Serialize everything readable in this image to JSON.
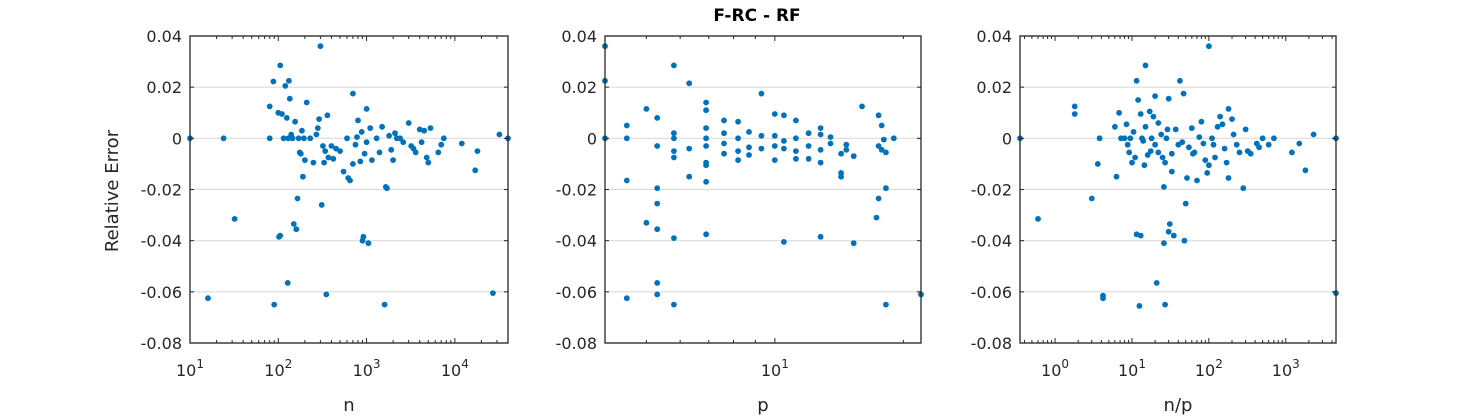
{
  "figure": {
    "title": "F-RC - RF",
    "ylabel": "Relative Error"
  },
  "chart_data": [
    {
      "type": "scatter",
      "xscale": "log",
      "xlim": [
        10,
        40000
      ],
      "ylim": [
        -0.08,
        0.04
      ],
      "xlabel": "n",
      "ylabel": "Relative Error",
      "grid": "horizontal",
      "x_tick_labels": [
        {
          "value": 10,
          "base": "10",
          "exp": "1"
        },
        {
          "value": 100,
          "base": "10",
          "exp": "2"
        },
        {
          "value": 1000,
          "base": "10",
          "exp": "3"
        },
        {
          "value": 10000,
          "base": "10",
          "exp": "4"
        }
      ],
      "y_ticks": [
        0.04,
        0.02,
        0,
        -0.02,
        -0.04,
        -0.06,
        -0.08
      ],
      "y_tick_labels": [
        "0.04",
        "0.02",
        "0",
        "-0.02",
        "-0.04",
        "-0.06",
        "-0.08"
      ],
      "color": "#0072BD",
      "points": [
        [
          10,
          0
        ],
        [
          16,
          -0.0625
        ],
        [
          24,
          0
        ],
        [
          32,
          -0.0315
        ],
        [
          80,
          0.0125
        ],
        [
          80,
          0
        ],
        [
          88,
          0.0222
        ],
        [
          90,
          -0.065
        ],
        [
          100,
          0.01
        ],
        [
          102,
          -0.0385
        ],
        [
          105,
          0.0285
        ],
        [
          105,
          -0.038
        ],
        [
          110,
          0.0095
        ],
        [
          115,
          0
        ],
        [
          120,
          0.0205
        ],
        [
          125,
          0.008
        ],
        [
          128,
          -0.0565
        ],
        [
          130,
          0
        ],
        [
          132,
          0.0225
        ],
        [
          135,
          0.0155
        ],
        [
          140,
          0.0015
        ],
        [
          145,
          0
        ],
        [
          150,
          -0.0335
        ],
        [
          155,
          0.0065
        ],
        [
          160,
          -0.0355
        ],
        [
          165,
          -0.0235
        ],
        [
          170,
          0
        ],
        [
          175,
          -0.0055
        ],
        [
          180,
          -0.006
        ],
        [
          185,
          0.003
        ],
        [
          190,
          -0.015
        ],
        [
          195,
          0
        ],
        [
          200,
          -0.0085
        ],
        [
          210,
          0.014
        ],
        [
          230,
          0
        ],
        [
          250,
          -0.0095
        ],
        [
          270,
          0.0015
        ],
        [
          280,
          0.004
        ],
        [
          290,
          0.0075
        ],
        [
          300,
          0.036
        ],
        [
          310,
          -0.026
        ],
        [
          320,
          -0.003
        ],
        [
          330,
          -0.0095
        ],
        [
          340,
          -0.005
        ],
        [
          350,
          -0.061
        ],
        [
          360,
          0.009
        ],
        [
          370,
          -0.0075
        ],
        [
          400,
          -0.003
        ],
        [
          420,
          -0.008
        ],
        [
          450,
          -0.004
        ],
        [
          500,
          -0.005
        ],
        [
          550,
          -0.013
        ],
        [
          600,
          0
        ],
        [
          620,
          -0.0155
        ],
        [
          650,
          -0.0165
        ],
        [
          700,
          0.0175
        ],
        [
          700,
          -0.01
        ],
        [
          750,
          -0.0025
        ],
        [
          780,
          0.0005
        ],
        [
          800,
          0.007
        ],
        [
          850,
          -0.009
        ],
        [
          880,
          0.0025
        ],
        [
          900,
          -0.04
        ],
        [
          920,
          -0.0385
        ],
        [
          950,
          -0.006
        ],
        [
          1000,
          0.0115
        ],
        [
          1000,
          -0.0015
        ],
        [
          1050,
          -0.041
        ],
        [
          1100,
          0.004
        ],
        [
          1150,
          -0.0085
        ],
        [
          1300,
          0
        ],
        [
          1400,
          -0.0055
        ],
        [
          1500,
          0.0045
        ],
        [
          1600,
          -0.065
        ],
        [
          1650,
          -0.019
        ],
        [
          1700,
          -0.0195
        ],
        [
          1800,
          0.001
        ],
        [
          1900,
          -0.0045
        ],
        [
          2000,
          -0.0085
        ],
        [
          2100,
          0.002
        ],
        [
          2200,
          0
        ],
        [
          2400,
          0
        ],
        [
          2600,
          -0.0015
        ],
        [
          3000,
          0.006
        ],
        [
          3200,
          -0.003
        ],
        [
          3400,
          -0.004
        ],
        [
          3600,
          -0.0055
        ],
        [
          4000,
          0.0035
        ],
        [
          4200,
          -0.0015
        ],
        [
          4500,
          0.003
        ],
        [
          4800,
          -0.0075
        ],
        [
          5000,
          -0.0095
        ],
        [
          5300,
          0.004
        ],
        [
          6500,
          -0.0055
        ],
        [
          7000,
          -0.0025
        ],
        [
          7500,
          0
        ],
        [
          12000,
          -0.002
        ],
        [
          17000,
          -0.0125
        ],
        [
          18000,
          -0.005
        ],
        [
          27000,
          -0.0605
        ],
        [
          32000,
          0.0015
        ],
        [
          40000,
          0
        ]
      ]
    },
    {
      "type": "scatter",
      "xscale": "log",
      "xlim": [
        4,
        22
      ],
      "ylim": [
        -0.08,
        0.04
      ],
      "xlabel": "p",
      "ylabel": "",
      "grid": "horizontal",
      "x_tick_labels": [
        {
          "value": 10,
          "base": "10",
          "exp": "1"
        }
      ],
      "y_ticks": [
        0.04,
        0.02,
        0,
        -0.02,
        -0.04,
        -0.06,
        -0.08
      ],
      "y_tick_labels": [
        "0.04",
        "0.02",
        "0",
        "-0.02",
        "-0.04",
        "-0.06",
        "-0.08"
      ],
      "color": "#0072BD",
      "points": [
        [
          4,
          0.036
        ],
        [
          4,
          0.0225
        ],
        [
          4,
          0
        ],
        [
          4.5,
          0.005
        ],
        [
          4.5,
          0
        ],
        [
          4.5,
          -0.0625
        ],
        [
          4.5,
          -0.0165
        ],
        [
          5,
          0.0115
        ],
        [
          5,
          -0.033
        ],
        [
          5.3,
          0.008
        ],
        [
          5.3,
          -0.003
        ],
        [
          5.3,
          -0.0195
        ],
        [
          5.3,
          -0.0255
        ],
        [
          5.3,
          -0.0565
        ],
        [
          5.3,
          -0.061
        ],
        [
          5.3,
          -0.0355
        ],
        [
          5.8,
          0.0285
        ],
        [
          5.8,
          0.002
        ],
        [
          5.8,
          0
        ],
        [
          5.8,
          -0.005
        ],
        [
          5.8,
          -0.0075
        ],
        [
          5.8,
          -0.039
        ],
        [
          5.8,
          -0.065
        ],
        [
          6.3,
          0.0215
        ],
        [
          6.3,
          -0.004
        ],
        [
          6.3,
          -0.015
        ],
        [
          6.9,
          0.014
        ],
        [
          6.9,
          0.011
        ],
        [
          6.9,
          0.004
        ],
        [
          6.9,
          0
        ],
        [
          6.9,
          -0.003
        ],
        [
          6.9,
          -0.0095
        ],
        [
          6.9,
          -0.0105
        ],
        [
          6.9,
          -0.017
        ],
        [
          6.9,
          -0.0375
        ],
        [
          7.6,
          0.007
        ],
        [
          7.6,
          0.002
        ],
        [
          7.6,
          -0.002
        ],
        [
          7.6,
          -0.006
        ],
        [
          8.2,
          0.0065
        ],
        [
          8.2,
          0
        ],
        [
          8.2,
          -0.005
        ],
        [
          8.2,
          -0.0085
        ],
        [
          8.7,
          0.0025
        ],
        [
          8.7,
          -0.0035
        ],
        [
          8.7,
          -0.0065
        ],
        [
          9.3,
          0.0175
        ],
        [
          9.3,
          0.001
        ],
        [
          9.3,
          -0.004
        ],
        [
          10,
          0.0095
        ],
        [
          10,
          0.001
        ],
        [
          10,
          -0.003
        ],
        [
          10,
          -0.0085
        ],
        [
          10.5,
          0.009
        ],
        [
          10.5,
          -0.001
        ],
        [
          10.5,
          -0.004
        ],
        [
          10.5,
          -0.0405
        ],
        [
          11.2,
          0.007
        ],
        [
          11.2,
          0
        ],
        [
          11.2,
          -0.005
        ],
        [
          11.2,
          -0.008
        ],
        [
          12,
          0.002
        ],
        [
          12,
          -0.003
        ],
        [
          12,
          -0.008
        ],
        [
          12.8,
          0.004
        ],
        [
          12.8,
          0.0015
        ],
        [
          12.8,
          -0.0045
        ],
        [
          12.8,
          -0.0095
        ],
        [
          12.8,
          -0.0385
        ],
        [
          13.5,
          0.0005
        ],
        [
          13.5,
          -0.002
        ],
        [
          14.3,
          -0.006
        ],
        [
          14.3,
          -0.0135
        ],
        [
          14.3,
          -0.015
        ],
        [
          14.7,
          -0.0025
        ],
        [
          14.7,
          -0.0045
        ],
        [
          15.3,
          -0.007
        ],
        [
          15.3,
          -0.041
        ],
        [
          16,
          0.0125
        ],
        [
          17.3,
          -0.031
        ],
        [
          17.5,
          0.009
        ],
        [
          17.5,
          -0.003
        ],
        [
          17.5,
          -0.0235
        ],
        [
          17.8,
          0.005
        ],
        [
          17.8,
          -0.0045
        ],
        [
          18,
          -0.0005
        ],
        [
          18.2,
          -0.065
        ],
        [
          18.2,
          -0.0195
        ],
        [
          18.2,
          -0.0055
        ],
        [
          19,
          0
        ],
        [
          22,
          -0.061
        ]
      ]
    },
    {
      "type": "scatter",
      "xscale": "log",
      "xlim": [
        0.35,
        4500
      ],
      "ylim": [
        -0.08,
        0.04
      ],
      "xlabel": "n/p",
      "ylabel": "",
      "grid": "horizontal",
      "x_tick_labels": [
        {
          "value": 1,
          "base": "10",
          "exp": "0"
        },
        {
          "value": 10,
          "base": "10",
          "exp": "1"
        },
        {
          "value": 100,
          "base": "10",
          "exp": "2"
        },
        {
          "value": 1000,
          "base": "10",
          "exp": "3"
        }
      ],
      "y_ticks": [
        0.04,
        0.02,
        0,
        -0.02,
        -0.04,
        -0.06,
        -0.08
      ],
      "y_tick_labels": [
        "0.04",
        "0.02",
        "0",
        "-0.02",
        "-0.04",
        "-0.06",
        "-0.08"
      ],
      "color": "#0072BD",
      "points": [
        [
          0.35,
          0
        ],
        [
          0.6,
          -0.0315
        ],
        [
          1.8,
          0.0125
        ],
        [
          1.8,
          0.0095
        ],
        [
          3,
          -0.0235
        ],
        [
          3.6,
          -0.01
        ],
        [
          3.8,
          0
        ],
        [
          4.2,
          -0.0615
        ],
        [
          4.2,
          -0.0625
        ],
        [
          6,
          0.0045
        ],
        [
          6.3,
          -0.015
        ],
        [
          6.8,
          0.01
        ],
        [
          7.2,
          0
        ],
        [
          8,
          0
        ],
        [
          8.5,
          0.0055
        ],
        [
          8.8,
          -0.0025
        ],
        [
          9.2,
          -0.0055
        ],
        [
          9.5,
          0
        ],
        [
          10,
          -0.0095
        ],
        [
          10.5,
          0.0025
        ],
        [
          11,
          -0.0075
        ],
        [
          11.5,
          -0.0375
        ],
        [
          11.5,
          0.0225
        ],
        [
          12,
          0.015
        ],
        [
          12.5,
          -0.0655
        ],
        [
          13,
          0.0095
        ],
        [
          13,
          -0.038
        ],
        [
          13.5,
          0
        ],
        [
          14,
          -0.001
        ],
        [
          14.5,
          -0.0105
        ],
        [
          15,
          0.0285
        ],
        [
          15,
          0.0045
        ],
        [
          16,
          -0.0065
        ],
        [
          17,
          0.0105
        ],
        [
          17.5,
          -0.005
        ],
        [
          18,
          0
        ],
        [
          19,
          0.0085
        ],
        [
          20,
          0.0165
        ],
        [
          20,
          -0.0025
        ],
        [
          21,
          -0.0565
        ],
        [
          22,
          0.006
        ],
        [
          22,
          -0.0055
        ],
        [
          24,
          0.0015
        ],
        [
          25,
          -0.0075
        ],
        [
          26,
          -0.041
        ],
        [
          26,
          -0.019
        ],
        [
          27,
          -0.0095
        ],
        [
          27,
          -0.065
        ],
        [
          28,
          0
        ],
        [
          29,
          0.0035
        ],
        [
          30,
          -0.0365
        ],
        [
          30,
          0.0155
        ],
        [
          31,
          -0.0335
        ],
        [
          33,
          -0.013
        ],
        [
          33,
          -0.006
        ],
        [
          35,
          -0.038
        ],
        [
          37,
          0.0035
        ],
        [
          40,
          -0.0025
        ],
        [
          42,
          0.0225
        ],
        [
          45,
          -0.0015
        ],
        [
          47,
          0.0175
        ],
        [
          48,
          -0.04
        ],
        [
          50,
          -0.0255
        ],
        [
          52,
          -0.0155
        ],
        [
          55,
          -0.0035
        ],
        [
          60,
          0.004
        ],
        [
          62,
          -0.006
        ],
        [
          65,
          -0.0055
        ],
        [
          70,
          -0.0165
        ],
        [
          75,
          0.0005
        ],
        [
          80,
          0.0065
        ],
        [
          85,
          -0.002
        ],
        [
          90,
          -0.0085
        ],
        [
          95,
          -0.0135
        ],
        [
          100,
          0.036
        ],
        [
          100,
          -0.0105
        ],
        [
          110,
          0
        ],
        [
          115,
          -0.0025
        ],
        [
          120,
          -0.0075
        ],
        [
          130,
          0.0045
        ],
        [
          140,
          0.0085
        ],
        [
          150,
          0.0055
        ],
        [
          160,
          -0.004
        ],
        [
          170,
          -0.0095
        ],
        [
          180,
          0.0115
        ],
        [
          180,
          -0.0155
        ],
        [
          200,
          0.0075
        ],
        [
          210,
          0.0015
        ],
        [
          230,
          -0.0025
        ],
        [
          250,
          -0.0055
        ],
        [
          280,
          -0.0195
        ],
        [
          300,
          0.0035
        ],
        [
          320,
          -0.005
        ],
        [
          350,
          -0.006
        ],
        [
          420,
          -0.002
        ],
        [
          450,
          -0.0035
        ],
        [
          500,
          0
        ],
        [
          600,
          -0.0025
        ],
        [
          700,
          0
        ],
        [
          1200,
          -0.0055
        ],
        [
          1500,
          -0.002
        ],
        [
          1800,
          -0.0125
        ],
        [
          2300,
          0.0015
        ],
        [
          4500,
          0
        ],
        [
          4500,
          -0.0605
        ]
      ]
    }
  ]
}
